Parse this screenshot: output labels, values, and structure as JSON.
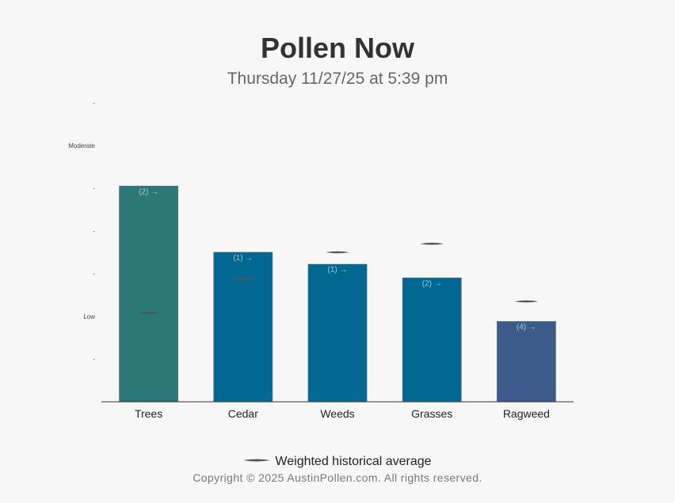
{
  "title": "Pollen Now",
  "subtitle": "Thursday 11/27/25 at 5:39 pm",
  "legend": {
    "label": "Weighted historical average"
  },
  "copyright": "Copyright © 2025 AustinPollen.com.  All rights reserved.",
  "colors": {
    "trees": "#2a7878",
    "cedar": "#006891",
    "weeds": "#006891",
    "grasses": "#006891",
    "ragweed": "#3c5b8a",
    "avg_marker": "#555555",
    "axis": "#333333"
  },
  "chart_data": {
    "type": "bar",
    "title": "Pollen Now",
    "subtitle": "Thursday 11/27/25 at 5:39 pm",
    "categories": [
      "Trees",
      "Cedar",
      "Weeds",
      "Grasses",
      "Ragweed"
    ],
    "values": [
      5.05,
      3.5,
      3.22,
      2.9,
      1.88
    ],
    "bar_labels": [
      "(2) →",
      "(1) →",
      "(1) →",
      "(2) →",
      "(4) →"
    ],
    "historical_average": [
      2.08,
      2.87,
      3.5,
      3.7,
      2.35
    ],
    "y_ticks": [
      {
        "value": 1,
        "label": "-"
      },
      {
        "value": 2,
        "label": "Low"
      },
      {
        "value": 3,
        "label": "-"
      },
      {
        "value": 4,
        "label": "-"
      },
      {
        "value": 5,
        "label": "-"
      },
      {
        "value": 6,
        "label": "Moderate"
      },
      {
        "value": 7,
        "label": "-"
      }
    ],
    "ylim": [
      0,
      7
    ],
    "grid": false,
    "legend_position": "bottom"
  }
}
